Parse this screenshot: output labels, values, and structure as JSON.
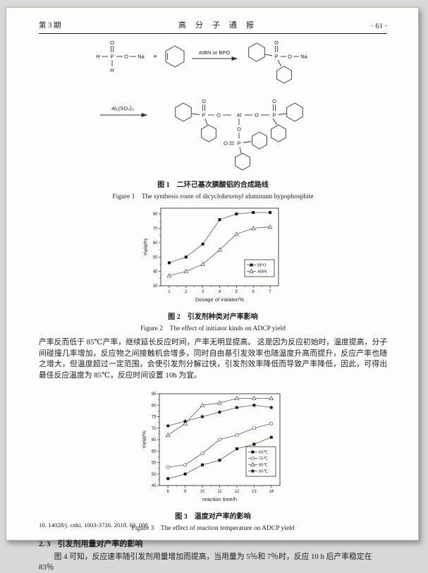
{
  "header": {
    "issue": "第 3 期",
    "journal": "高分子通报",
    "page_no": "· 61 ·"
  },
  "scheme": {
    "labels": {
      "H": "H",
      "P": "P",
      "O": "O",
      "Na": "Na",
      "Al": "Al",
      "plus": "+",
      "arrow1": "AIBN or BPO",
      "arrow2": "Al₂(SO₄)₃"
    }
  },
  "fig1": {
    "cn": "图 1　二环己基次膦酸铝的合成路线",
    "en": "Figure 1　The synthesis route of dicyclohexenyl aluminum hypophosphite"
  },
  "fig2": {
    "cn": "图 2　引发剂种类对产率影响",
    "en": "Figure 2　The effect of initiator kinds on ADCP yield"
  },
  "fig3": {
    "cn": "图 3　温度对产率的影响",
    "en": "Figure 3　The effect of reaction temperature on ADCP yield"
  },
  "para1": "产率反而低于 85℃产率，继续延长反应时间，产率无明显提高。 这是因为反应初始时，温度提高，分子间碰撞几率增加，反应物之间接触机会增多，同时自由基引发效率也随温度升高而提升，反应产率也随之增大，但温度超过一定范围，会使引发剂分解过快，引发剂效率降低而导致产率降低，因此，可得出最佳反应温度为 85℃，反应时间设置 10h 为宜。",
  "section": {
    "no": "2. 3",
    "title": "引发剂用量对产率的影响"
  },
  "para2": "图 4 可知，反应速率随引发剂用量增加而提高，当用量为 5％和 7％时，反应 10 h 后产率稳定在 83％",
  "footer_doi": "10. 14028/j. cnki. 1003-3726. 2018. 03. 008",
  "chart_data": [
    {
      "type": "line",
      "title": "",
      "xlabel": "Dosage of initiator/%",
      "ylabel": "Yield/%",
      "x": [
        1,
        2,
        3,
        4,
        5,
        6,
        7
      ],
      "xlim": [
        0.5,
        7.5
      ],
      "ylim": [
        30,
        84
      ],
      "xticks": [
        1,
        2,
        3,
        4,
        5,
        6,
        7
      ],
      "yticks": [
        30,
        40,
        50,
        60,
        70,
        80
      ],
      "grid": false,
      "legend_position": "lower right",
      "series": [
        {
          "name": "BPO",
          "marker": "filled-square",
          "values": [
            46,
            50,
            59,
            76,
            80,
            81,
            81
          ]
        },
        {
          "name": "AIBN",
          "marker": "open-triangle",
          "values": [
            37,
            40,
            45,
            55,
            66,
            70,
            71
          ]
        }
      ]
    },
    {
      "type": "line",
      "title": "",
      "xlabel": "reaction time/h",
      "ylabel": "Yield/%",
      "x": [
        8,
        9,
        10,
        11,
        12,
        13,
        14
      ],
      "xlim": [
        7.5,
        14.5
      ],
      "ylim": [
        45,
        85
      ],
      "xticks": [
        8,
        9,
        10,
        11,
        12,
        13,
        14
      ],
      "yticks": [
        45,
        50,
        55,
        60,
        65,
        70,
        75,
        80,
        85
      ],
      "grid": false,
      "legend_position": "lower right",
      "series": [
        {
          "name": "65℃",
          "marker": "filled-square",
          "values": [
            48,
            50,
            54,
            56,
            61,
            63,
            66
          ]
        },
        {
          "name": "75℃",
          "marker": "open-circle",
          "values": [
            53,
            54,
            59,
            65,
            67,
            70,
            72
          ]
        },
        {
          "name": "85℃",
          "marker": "open-triangle",
          "values": [
            67,
            72,
            80,
            81,
            83,
            83,
            83
          ]
        },
        {
          "name": "95℃",
          "marker": "filled-star",
          "values": [
            71,
            73,
            75,
            77,
            79,
            80,
            79
          ]
        }
      ]
    }
  ]
}
